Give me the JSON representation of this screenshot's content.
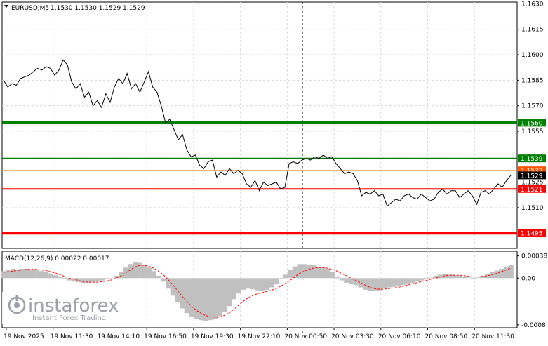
{
  "header": {
    "symbol": "EURUSD,M5",
    "ohlc": "1.1530 1.1530 1.1529 1.1529"
  },
  "macd": {
    "label": "MACD(12,26,9) 0.00022 0.00017"
  },
  "watermark": {
    "brand": "instaforex",
    "tagline": "Instant Forex Trading"
  },
  "colors": {
    "price_line": "#000000",
    "green_level": "#008000",
    "red_level": "#ff0000",
    "thin_level": "#f4a460",
    "histogram": "#c0c0c0",
    "signal": "#ff0000"
  },
  "chart_data": [
    {
      "type": "line",
      "series": [
        {
          "values": [
            1.1585,
            1.1581,
            1.1583,
            1.1582,
            1.1586,
            1.1587,
            1.1588,
            1.159,
            1.1592,
            1.1591,
            1.1593,
            1.1592,
            1.1588,
            1.1591,
            1.1597,
            1.1594,
            1.1584,
            1.158,
            1.1583,
            1.1575,
            1.1578,
            1.157,
            1.1573,
            1.1569,
            1.1577,
            1.1572,
            1.1581,
            1.1586,
            1.1583,
            1.1589,
            1.158,
            1.1583,
            1.1578,
            1.1584,
            1.159,
            1.1581,
            1.1578,
            1.157,
            1.156,
            1.1562,
            1.1556,
            1.155,
            1.1553,
            1.1544,
            1.154,
            1.1541,
            1.1535,
            1.1533,
            1.1537,
            1.1538,
            1.1528,
            1.1531,
            1.1529,
            1.1533,
            1.153,
            1.1532,
            1.153,
            1.1524,
            1.1522,
            1.1526,
            1.152,
            1.1525,
            1.1523,
            1.1524,
            1.1525,
            1.1521,
            1.1522,
            1.1536,
            1.1537,
            1.1536,
            1.1538,
            1.1539,
            1.1538,
            1.154,
            1.1539,
            1.1541,
            1.1539,
            1.154,
            1.1536,
            1.1533,
            1.153,
            1.1531,
            1.153,
            1.1526,
            1.1517,
            1.1519,
            1.1518,
            1.152,
            1.1517,
            1.1518,
            1.1511,
            1.1513,
            1.1515,
            1.1514,
            1.1517,
            1.1518,
            1.1516,
            1.1515,
            1.1518,
            1.1516,
            1.1514,
            1.1515,
            1.1519,
            1.1521,
            1.1518,
            1.152,
            1.152,
            1.1516,
            1.1518,
            1.152,
            1.1517,
            1.1512,
            1.1519,
            1.152,
            1.1518,
            1.1521,
            1.1524,
            1.1522,
            1.1526,
            1.1529
          ]
        }
      ],
      "levels": [
        {
          "value": 1.156,
          "label": "1.1560",
          "style": "green-thick"
        },
        {
          "value": 1.1539,
          "label": "1.1539",
          "style": "green"
        },
        {
          "value": 1.1532,
          "label": "1.1532",
          "style": "thin"
        },
        {
          "value": 1.1529,
          "label": "1.1529",
          "style": "current"
        },
        {
          "value": 1.1521,
          "label": "1.1521",
          "style": "red"
        },
        {
          "value": 1.1495,
          "label": "1.1495",
          "style": "red-thick"
        }
      ],
      "yticks": [
        "1.1630",
        "1.1615",
        "1.1600",
        "1.1585",
        "1.1570",
        "1.1555",
        "1.1540",
        "1.1525",
        "1.1510"
      ],
      "ytick_values": [
        1.163,
        1.1615,
        1.16,
        1.1585,
        1.157,
        1.1555,
        1.154,
        1.1525,
        1.151
      ],
      "ylim": [
        1.1486,
        1.1631
      ],
      "xticks": [
        "19 Nov 2025",
        "19 Nov 11:30",
        "19 Nov 14:10",
        "19 Nov 16:50",
        "19 Nov 19:30",
        "19 Nov 22:10",
        "20 Nov 00:50",
        "20 Nov 03:30",
        "20 Nov 06:10",
        "20 Nov 08:50",
        "20 Nov 11:30"
      ],
      "grid": true
    },
    {
      "type": "bar",
      "title": "MACD(12,26,9) 0.00022 0.00017",
      "yticks": [
        "0.00038",
        "0.00",
        "-0.0008"
      ],
      "ytick_values": [
        0.00038,
        0.0,
        -0.0008
      ],
      "ylim": [
        -0.00085,
        0.00046
      ],
      "series": [
        {
          "type": "bar",
          "values": [
            0.00012,
            0.00014,
            0.00016,
            0.00015,
            0.00016,
            0.00016,
            0.00015,
            0.00014,
            0.00012,
            0.0001,
            8e-05,
            5e-05,
            2e-05,
            -1e-05,
            -4e-05,
            -6e-05,
            -7e-05,
            -8e-05,
            -8e-05,
            -7e-05,
            -6e-05,
            -4e-05,
            -2e-05,
            0.0,
            4e-05,
            0.0001,
            0.00018,
            0.00024,
            0.00028,
            0.00026,
            0.00022,
            0.00018,
            0.00012,
            4e-05,
            -6e-05,
            -0.00018,
            -0.0003,
            -0.00042,
            -0.00052,
            -0.0006,
            -0.00066,
            -0.0007,
            -0.00072,
            -0.00073,
            -0.00072,
            -0.0007,
            -0.00065,
            -0.00058,
            -0.00048,
            -0.00036,
            -0.00026,
            -0.0002,
            -0.00018,
            -0.00019,
            -0.00021,
            -0.00022,
            -0.0002,
            -0.00016,
            -0.0001,
            -2e-05,
            6e-05,
            0.00014,
            0.0002,
            0.00024,
            0.00024,
            0.00023,
            0.00022,
            0.0002,
            0.00018,
            0.00016,
            0.0001,
            2e-05,
            -4e-05,
            -8e-05,
            -0.0001,
            -0.00012,
            -0.00016,
            -0.0002,
            -0.00022,
            -0.00022,
            -0.00021,
            -0.00018,
            -0.00016,
            -0.00015,
            -0.00014,
            -0.00012,
            -0.0001,
            -8e-05,
            -6e-05,
            -4e-05,
            -2e-05,
            1e-05,
            4e-05,
            6e-05,
            7e-05,
            6e-05,
            5e-05,
            4e-05,
            3e-05,
            1e-05,
            -1e-05,
            1e-05,
            4e-05,
            7e-05,
            0.0001,
            0.00013,
            0.00016,
            0.00019,
            0.00022
          ]
        },
        {
          "type": "line",
          "values": [
            0.0001,
            0.00011,
            0.00012,
            0.00013,
            0.00014,
            0.00015,
            0.00015,
            0.00015,
            0.00014,
            0.00013,
            0.00011,
            9e-05,
            6e-05,
            3e-05,
            0.0,
            -2e-05,
            -4e-05,
            -6e-05,
            -7e-05,
            -7e-05,
            -7e-05,
            -6e-05,
            -5e-05,
            -3e-05,
            0.0,
            4e-05,
            9e-05,
            0.00014,
            0.00019,
            0.00022,
            0.00022,
            0.0002,
            0.00017,
            0.00012,
            6e-05,
            -2e-05,
            -0.00011,
            -0.00021,
            -0.00031,
            -0.0004,
            -0.00048,
            -0.00055,
            -0.0006,
            -0.00064,
            -0.00066,
            -0.00067,
            -0.00067,
            -0.00064,
            -0.0006,
            -0.00054,
            -0.00047,
            -0.0004,
            -0.00034,
            -0.0003,
            -0.00027,
            -0.00025,
            -0.00023,
            -0.00021,
            -0.00018,
            -0.00014,
            -9e-05,
            -4e-05,
            2e-05,
            8e-05,
            0.00012,
            0.00015,
            0.00017,
            0.00018,
            0.00018,
            0.00017,
            0.00015,
            0.00012,
            8e-05,
            4e-05,
            0.0,
            -4e-05,
            -8e-05,
            -0.00012,
            -0.00016,
            -0.00018,
            -0.00019,
            -0.00019,
            -0.00018,
            -0.00017,
            -0.00016,
            -0.00014,
            -0.00012,
            -0.0001,
            -8e-05,
            -6e-05,
            -4e-05,
            -2e-05,
            0.0,
            2e-05,
            4e-05,
            5e-05,
            5e-05,
            5e-05,
            4e-05,
            3e-05,
            2e-05,
            2e-05,
            3e-05,
            4e-05,
            6e-05,
            8e-05,
            0.00011,
            0.00014,
            0.00017
          ]
        }
      ]
    }
  ]
}
